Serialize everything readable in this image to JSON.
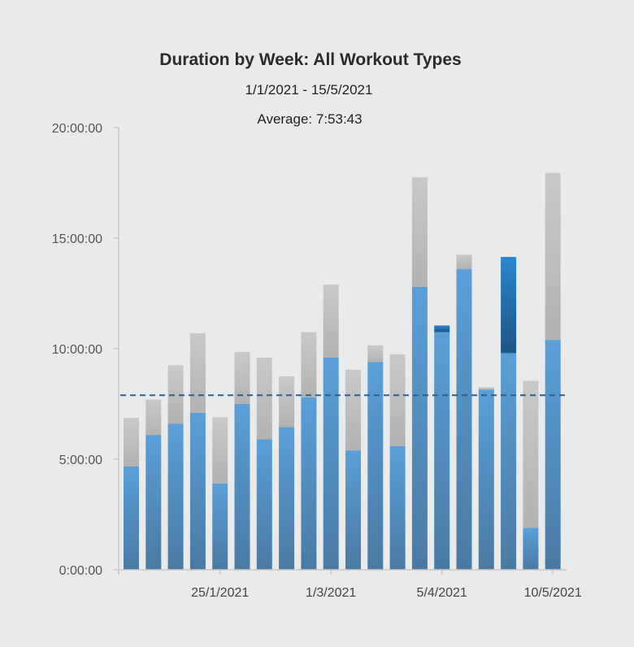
{
  "chart_data": {
    "type": "bar",
    "stacked": true,
    "title": "Duration by Week: All Workout Types",
    "subtitle": "1/1/2021 - 15/5/2021",
    "average_label": "Average: 7:53:43",
    "average_hours": 7.895,
    "y_ticks": [
      "0:00:00",
      "5:00:00",
      "10:00:00",
      "15:00:00",
      "20:00:00"
    ],
    "ylim": [
      0,
      20
    ],
    "x_ticks": [
      {
        "label": "25/1/2021",
        "index": 4
      },
      {
        "label": "1/3/2021",
        "index": 9
      },
      {
        "label": "5/4/2021",
        "index": 14
      },
      {
        "label": "10/5/2021",
        "index": 19
      }
    ],
    "bars": [
      {
        "blue": 4.67,
        "dark": 0,
        "gray": 2.2
      },
      {
        "blue": 6.1,
        "dark": 0,
        "gray": 1.6
      },
      {
        "blue": 6.6,
        "dark": 0,
        "gray": 2.65
      },
      {
        "blue": 7.1,
        "dark": 0,
        "gray": 3.6
      },
      {
        "blue": 3.9,
        "dark": 0,
        "gray": 3.0
      },
      {
        "blue": 7.5,
        "dark": 0,
        "gray": 2.35
      },
      {
        "blue": 5.9,
        "dark": 0,
        "gray": 3.7
      },
      {
        "blue": 6.45,
        "dark": 0,
        "gray": 2.3
      },
      {
        "blue": 7.8,
        "dark": 0,
        "gray": 2.95
      },
      {
        "blue": 9.6,
        "dark": 0,
        "gray": 3.3
      },
      {
        "blue": 5.4,
        "dark": 0,
        "gray": 3.65
      },
      {
        "blue": 9.4,
        "dark": 0,
        "gray": 0.75
      },
      {
        "blue": 5.6,
        "dark": 0,
        "gray": 4.15
      },
      {
        "blue": 12.8,
        "dark": 0,
        "gray": 4.95
      },
      {
        "blue": 10.75,
        "dark": 0.3,
        "gray": 0
      },
      {
        "blue": 13.6,
        "dark": 0,
        "gray": 0.65
      },
      {
        "blue": 8.15,
        "dark": 0,
        "gray": 0.1
      },
      {
        "blue": 9.8,
        "dark": 4.35,
        "gray": 0
      },
      {
        "blue": 1.9,
        "dark": 0,
        "gray": 6.65
      },
      {
        "blue": 10.4,
        "dark": 0,
        "gray": 7.55
      }
    ],
    "colors": {
      "blue_top": "#5a9fd8",
      "blue_bottom": "#4a7aa3",
      "dark_top": "#2a86cf",
      "dark_bottom": "#1c5486",
      "gray_top": "#c9c9c9",
      "gray_bottom": "#b2b2b2",
      "average_line": "#2e5f8a",
      "axis": "#c8c8c8"
    },
    "grid": false
  }
}
